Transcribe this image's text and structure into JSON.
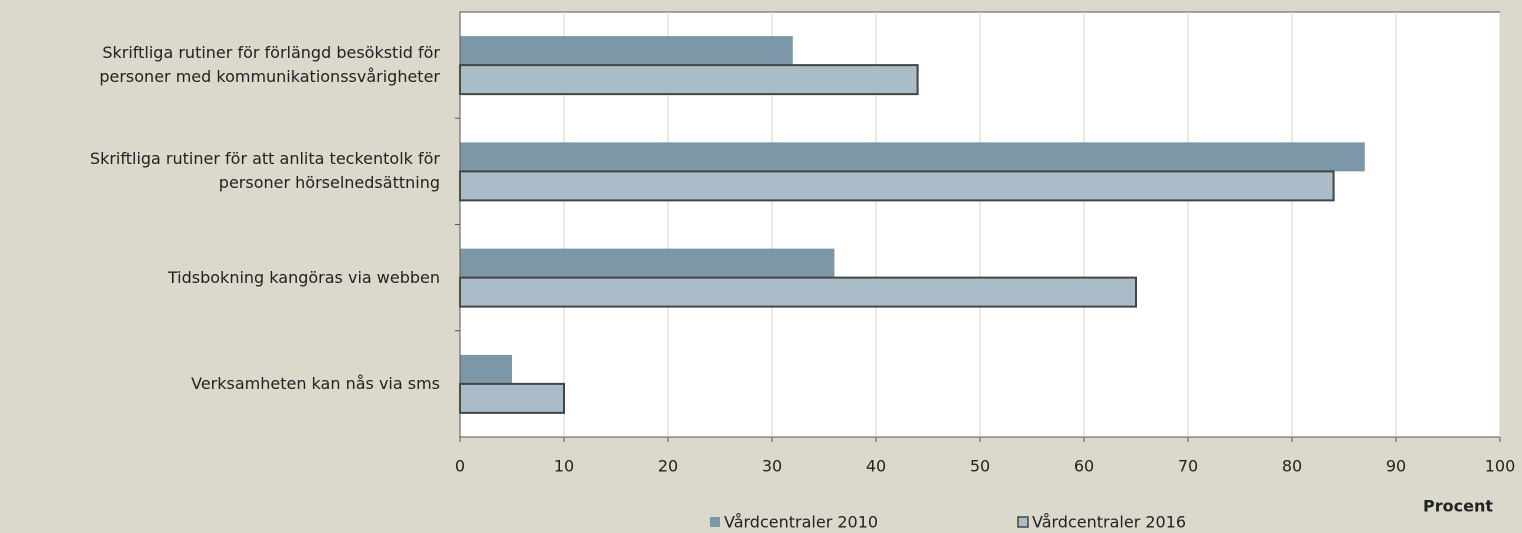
{
  "chart_data": {
    "type": "hbar",
    "categories": [
      "Skriftliga rutiner för förlängd besökstid för\npersoner med kommunikationssvårigheter",
      "Skriftliga rutiner för att anlita teckentolk för\npersoner hörselnedsättning",
      "Tidsbokning kangöras via webben",
      "Verksamheten kan nås via sms"
    ],
    "series": [
      {
        "name": "Vårdcentraler 2010",
        "color": "#7b97a8",
        "values": [
          32,
          87,
          36,
          5
        ]
      },
      {
        "name": "Vårdcentraler 2016",
        "color": "#a9bcc8",
        "values": [
          44,
          84,
          65,
          10
        ]
      }
    ],
    "xlabel": "Procent",
    "xlim": [
      0,
      100
    ],
    "xticks": [
      0,
      10,
      20,
      30,
      40,
      50,
      60,
      70,
      80,
      90,
      100
    ],
    "grid": true
  }
}
